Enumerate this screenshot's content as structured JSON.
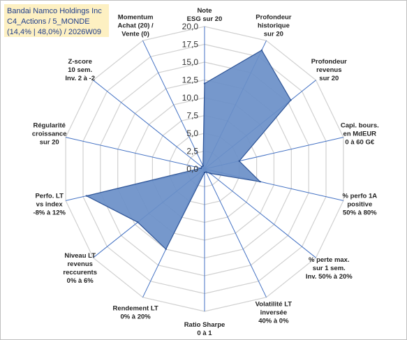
{
  "title": {
    "line1": "Bandai Namco Holdings Inc",
    "line2": "C4_Actions / 5_MONDE",
    "line3": "(14,4% | 48,0%) / 2026W09"
  },
  "colors": {
    "fill": "#6a8fc8",
    "stroke": "#2f5597",
    "grid": "#d0d0d0",
    "spokes": "#4472c4"
  },
  "chart_data": {
    "type": "radar",
    "rmin": 0,
    "rmax": 20,
    "ticks": [
      0,
      2.5,
      5,
      7.5,
      10,
      12.5,
      15,
      17.5,
      20
    ],
    "tick_labels": [
      "0,0",
      "2,5",
      "5,0",
      "7,5",
      "10,0",
      "12,5",
      "15,0",
      "17,5",
      "20,0"
    ],
    "grid": true,
    "axes": [
      {
        "label": [
          "Note",
          "ESG sur 20"
        ],
        "value": 12
      },
      {
        "label": [
          "Profondeur",
          "historique",
          "sur 20"
        ],
        "value": 18.5
      },
      {
        "label": [
          "Profondeur",
          "revenus",
          "sur 20"
        ],
        "value": 15.5
      },
      {
        "label": [
          "Capi. bours.",
          "en MdEUR",
          "0 à 60 G€"
        ],
        "value": 5
      },
      {
        "label": [
          "% perfo 1A",
          "positive",
          "50% à 80%"
        ],
        "value": 8
      },
      {
        "label": [
          "% perte max.",
          "sur 1 sem.",
          "Inv. 50% à 20%"
        ],
        "value": 1
      },
      {
        "label": [
          "Volatilité LT",
          "inversée",
          "40% à 0%"
        ],
        "value": 0.5
      },
      {
        "label": [
          "Ratio Sharpe",
          "0 à 1"
        ],
        "value": 0.5
      },
      {
        "label": [
          "Rendement LT",
          "0% à 20%"
        ],
        "value": 12.5
      },
      {
        "label": [
          "Niveau LT",
          "revenus",
          "reccurents",
          "0% à 6%"
        ],
        "value": 12
      },
      {
        "label": [
          "Perfo. LT",
          "vs index",
          "-8% à 12%"
        ],
        "value": 17
      },
      {
        "label": [
          "Régularité",
          "croissance",
          "sur 20"
        ],
        "value": 0.5
      },
      {
        "label": [
          "Z-score",
          "10 sem.",
          "Inv. 2 à -2"
        ],
        "value": 0.5
      },
      {
        "label": [
          "Momentum",
          "Achat (20) /",
          "Vente (0)"
        ],
        "value": 0.5
      }
    ]
  }
}
